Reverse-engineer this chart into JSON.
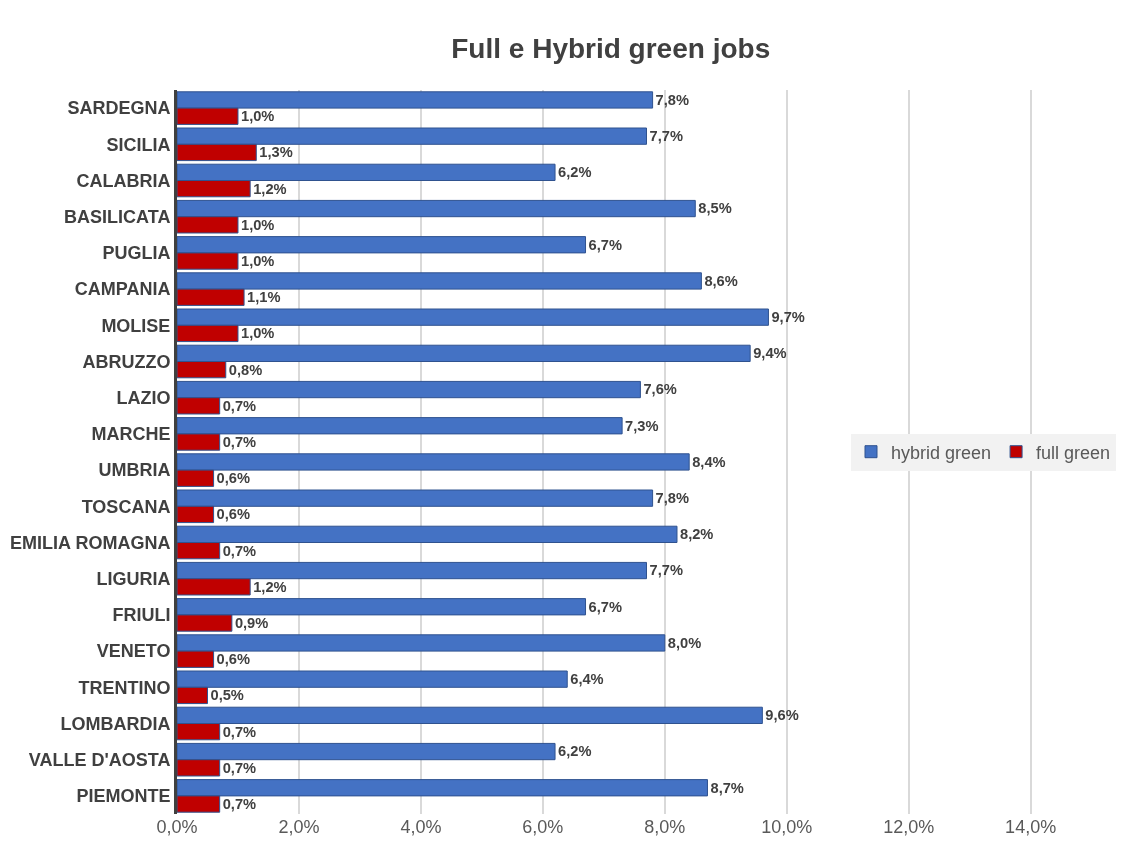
{
  "chart_data": {
    "type": "bar",
    "orientation": "horizontal",
    "title": "Full e Hybrid green jobs",
    "categories": [
      "SARDEGNA",
      "SICILIA",
      "CALABRIA",
      "BASILICATA",
      "PUGLIA",
      "CAMPANIA",
      "MOLISE",
      "ABRUZZO",
      "LAZIO",
      "MARCHE",
      "UMBRIA",
      "TOSCANA",
      "EMILIA ROMAGNA",
      "LIGURIA",
      "FRIULI",
      "VENETO",
      "TRENTINO",
      "LOMBARDIA",
      "VALLE D'AOSTA",
      "PIEMONTE"
    ],
    "series": [
      {
        "name": "hybrid green",
        "color": "#4472c4",
        "values": [
          7.8,
          7.7,
          6.2,
          8.5,
          6.7,
          8.6,
          9.7,
          9.4,
          7.6,
          7.3,
          8.4,
          7.8,
          8.2,
          7.7,
          6.7,
          8.0,
          6.4,
          9.6,
          6.2,
          8.7
        ],
        "value_labels": [
          "7,8%",
          "7,7%",
          "6,2%",
          "8,5%",
          "6,7%",
          "8,6%",
          "9,7%",
          "9,4%",
          "7,6%",
          "7,3%",
          "8,4%",
          "7,8%",
          "8,2%",
          "7,7%",
          "6,7%",
          "8,0%",
          "6,4%",
          "9,6%",
          "6,2%",
          "8,7%"
        ]
      },
      {
        "name": "full green",
        "color": "#c00000",
        "values": [
          1.0,
          1.3,
          1.2,
          1.0,
          1.0,
          1.1,
          1.0,
          0.8,
          0.7,
          0.7,
          0.6,
          0.6,
          0.7,
          1.2,
          0.9,
          0.6,
          0.5,
          0.7,
          0.7,
          0.7
        ],
        "value_labels": [
          "1,0%",
          "1,3%",
          "1,2%",
          "1,0%",
          "1,0%",
          "1,1%",
          "1,0%",
          "0,8%",
          "0,7%",
          "0,7%",
          "0,6%",
          "0,6%",
          "0,7%",
          "1,2%",
          "0,9%",
          "0,6%",
          "0,5%",
          "0,7%",
          "0,7%",
          "0,7%"
        ]
      }
    ],
    "xlim": [
      0,
      15.4
    ],
    "xticks": [
      {
        "value": 0,
        "label": "0,0%"
      },
      {
        "value": 2,
        "label": "2,0%"
      },
      {
        "value": 4,
        "label": "4,0%"
      },
      {
        "value": 6,
        "label": "6,0%"
      },
      {
        "value": 8,
        "label": "8,0%"
      },
      {
        "value": 10,
        "label": "10,0%"
      },
      {
        "value": 12,
        "label": "12,0%"
      },
      {
        "value": 14,
        "label": "14,0%"
      }
    ],
    "grid": "x",
    "legend": "right"
  }
}
